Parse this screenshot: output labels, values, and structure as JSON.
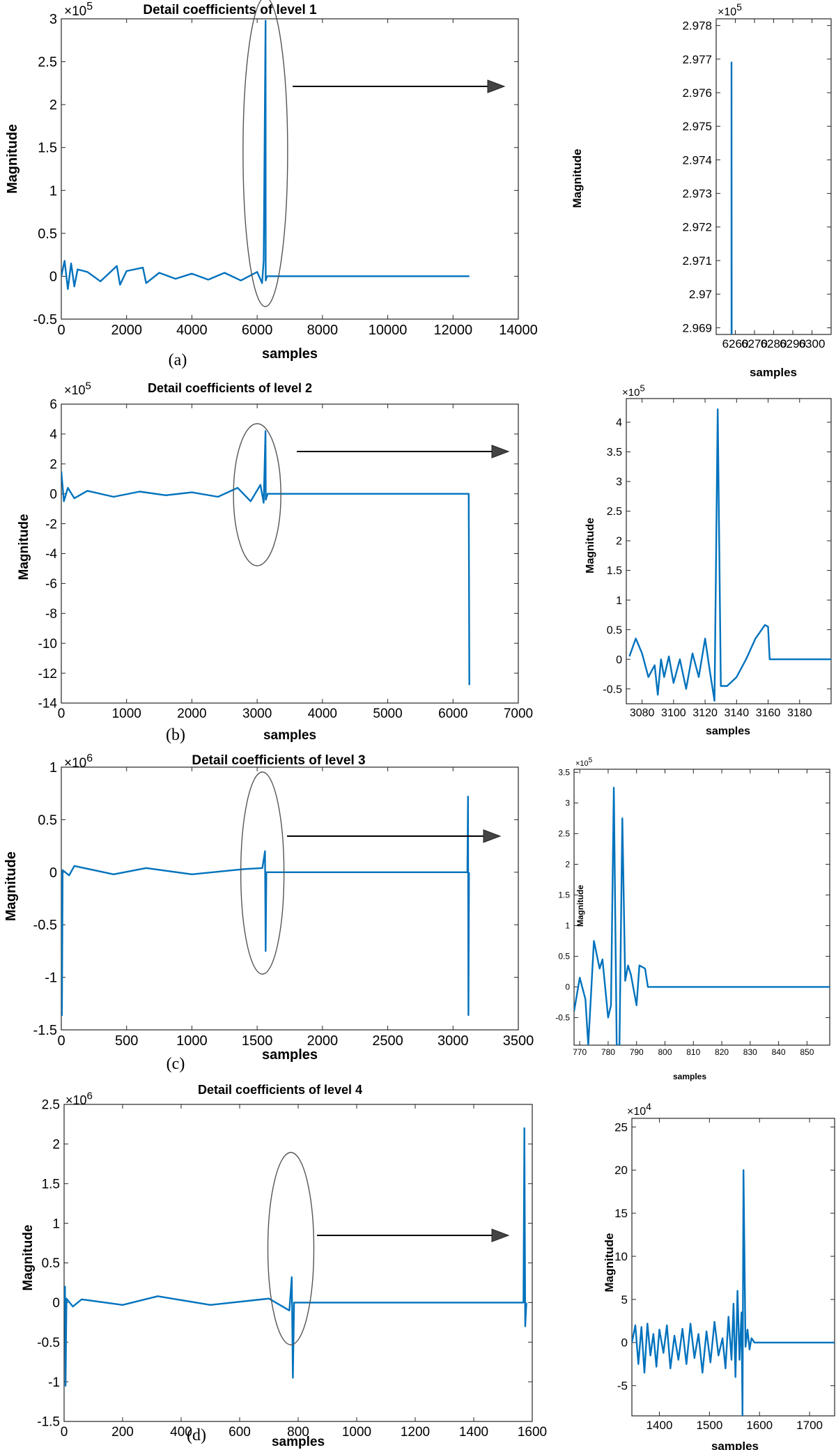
{
  "chart_data": [
    {
      "panel": "(a) main",
      "type": "line",
      "title": "Detail coefficients of level 1",
      "xlabel": "samples",
      "ylabel": "Magnitude",
      "exponent": "×10",
      "exponent_power": "5",
      "xlim": [
        0,
        14000
      ],
      "ylim": [
        -0.5,
        3
      ],
      "xticks": [
        "0",
        "2000",
        "4000",
        "6000",
        "8000",
        "10000",
        "12000",
        "14000"
      ],
      "yticks": [
        "-0.5",
        "0",
        "0.5",
        "1",
        "1.5",
        "2",
        "2.5",
        "3"
      ],
      "series": [
        {
          "color": "#0072BD",
          "points": [
            [
              0,
              0
            ],
            [
              100,
              0.18
            ],
            [
              200,
              -0.15
            ],
            [
              300,
              0.15
            ],
            [
              400,
              -0.12
            ],
            [
              500,
              0.08
            ],
            [
              800,
              0.05
            ],
            [
              1200,
              -0.06
            ],
            [
              1700,
              0.12
            ],
            [
              1800,
              -0.1
            ],
            [
              2000,
              0.06
            ],
            [
              2500,
              0.1
            ],
            [
              2600,
              -0.08
            ],
            [
              3000,
              0.04
            ],
            [
              3500,
              -0.03
            ],
            [
              4000,
              0.03
            ],
            [
              4500,
              -0.04
            ],
            [
              5000,
              0.04
            ],
            [
              5500,
              -0.05
            ],
            [
              6000,
              0.05
            ],
            [
              6150,
              -0.08
            ],
            [
              6200,
              0.18
            ],
            [
              6258,
              2.977
            ],
            [
              6262,
              -0.05
            ],
            [
              6300,
              0
            ],
            [
              12500,
              0
            ]
          ]
        }
      ],
      "highlight_ellipse_x": 6250,
      "caption": "(a)"
    },
    {
      "panel": "(a) zoom",
      "type": "line",
      "xlabel": "samples",
      "ylabel": "Magnitude",
      "exponent": "×10",
      "exponent_power": "5",
      "xlim": [
        6250,
        6310
      ],
      "ylim": [
        2.9688,
        2.9782
      ],
      "xticks": [
        "6260",
        "6270",
        "6280",
        "6290",
        "6300"
      ],
      "yticks": [
        "2.969",
        "2.97",
        "2.971",
        "2.972",
        "2.973",
        "2.974",
        "2.975",
        "2.976",
        "2.977",
        "2.978"
      ],
      "series": [
        {
          "color": "#0072BD",
          "points": [
            [
              6258,
              2.9688
            ],
            [
              6258,
              2.9769
            ],
            [
              6258.1,
              2.9688
            ]
          ]
        }
      ]
    },
    {
      "panel": "(b) main",
      "type": "line",
      "title": "Detail coefficients of level 2",
      "xlabel": "samples",
      "ylabel": "Magnitude",
      "exponent": "×10",
      "exponent_power": "5",
      "xlim": [
        0,
        7000
      ],
      "ylim": [
        -14,
        6
      ],
      "xticks": [
        "0",
        "1000",
        "2000",
        "3000",
        "4000",
        "5000",
        "6000",
        "7000"
      ],
      "yticks": [
        "-14",
        "-12",
        "-10",
        "-8",
        "-6",
        "-4",
        "-2",
        "0",
        "2",
        "4",
        "6"
      ],
      "series": [
        {
          "color": "#0072BD",
          "points": [
            [
              0,
              1.5
            ],
            [
              40,
              -0.5
            ],
            [
              100,
              0.4
            ],
            [
              200,
              -0.3
            ],
            [
              400,
              0.2
            ],
            [
              800,
              -0.2
            ],
            [
              1200,
              0.15
            ],
            [
              1600,
              -0.1
            ],
            [
              2000,
              0.1
            ],
            [
              2400,
              -0.2
            ],
            [
              2700,
              0.4
            ],
            [
              2900,
              -0.5
            ],
            [
              3050,
              0.6
            ],
            [
              3100,
              -0.6
            ],
            [
              3128,
              4.2
            ],
            [
              3132,
              -0.4
            ],
            [
              3160,
              0
            ],
            [
              6240,
              0
            ],
            [
              6250,
              -12.8
            ]
          ]
        }
      ],
      "highlight_ellipse_x": 3000,
      "caption": "(b)"
    },
    {
      "panel": "(b) zoom",
      "type": "line",
      "xlabel": "samples",
      "ylabel": "Magnitude",
      "exponent": "×10",
      "exponent_power": "5",
      "xlim": [
        3070,
        3200
      ],
      "ylim": [
        -0.75,
        4.4
      ],
      "xticks": [
        "3080",
        "3100",
        "3120",
        "3140",
        "3160",
        "3180"
      ],
      "yticks": [
        "-0.5",
        "0",
        "0.5",
        "1",
        "1.5",
        "2",
        "2.5",
        "3",
        "3.5",
        "4"
      ],
      "series": [
        {
          "color": "#0072BD",
          "points": [
            [
              3072,
              0.05
            ],
            [
              3076,
              0.35
            ],
            [
              3080,
              0.1
            ],
            [
              3084,
              -0.3
            ],
            [
              3088,
              -0.1
            ],
            [
              3090,
              -0.6
            ],
            [
              3092,
              0.0
            ],
            [
              3094,
              -0.3
            ],
            [
              3097,
              0.05
            ],
            [
              3100,
              -0.4
            ],
            [
              3104,
              0.0
            ],
            [
              3108,
              -0.5
            ],
            [
              3112,
              0.1
            ],
            [
              3116,
              -0.3
            ],
            [
              3120,
              0.35
            ],
            [
              3123,
              -0.2
            ],
            [
              3126,
              -0.7
            ],
            [
              3128,
              4.22
            ],
            [
              3130,
              -0.45
            ],
            [
              3134,
              -0.45
            ],
            [
              3140,
              -0.3
            ],
            [
              3146,
              0.0
            ],
            [
              3152,
              0.35
            ],
            [
              3158,
              0.58
            ],
            [
              3160,
              0.55
            ],
            [
              3161,
              0.0
            ],
            [
              3200,
              0.0
            ]
          ]
        }
      ]
    },
    {
      "panel": "(c) main",
      "type": "line",
      "title": "Detail coefficients of level 3",
      "xlabel": "samples",
      "ylabel": "Magnitude",
      "exponent": "×10",
      "exponent_power": "6",
      "xlim": [
        0,
        3500
      ],
      "ylim": [
        -1.5,
        1
      ],
      "xticks": [
        "0",
        "500",
        "1000",
        "1500",
        "2000",
        "2500",
        "3000",
        "3500"
      ],
      "yticks": [
        "-1.5",
        "-1",
        "-0.5",
        "0",
        "0.5",
        "1"
      ],
      "series": [
        {
          "color": "#0072BD",
          "points": [
            [
              0,
              0
            ],
            [
              5,
              -1.36
            ],
            [
              10,
              0.02
            ],
            [
              60,
              -0.03
            ],
            [
              100,
              0.06
            ],
            [
              400,
              -0.02
            ],
            [
              650,
              0.04
            ],
            [
              1000,
              -0.02
            ],
            [
              1400,
              0.03
            ],
            [
              1540,
              0.04
            ],
            [
              1560,
              0.2
            ],
            [
              1565,
              -0.75
            ],
            [
              1570,
              0
            ],
            [
              3110,
              0
            ],
            [
              3115,
              0.72
            ],
            [
              3118,
              -1.36
            ],
            [
              3122,
              0
            ]
          ]
        }
      ],
      "highlight_ellipse_x": 1540,
      "caption": "(c)"
    },
    {
      "panel": "(c) zoom",
      "type": "line",
      "xlabel": "samples",
      "ylabel": "Magnitude",
      "exponent": "×10",
      "exponent_power": "5",
      "xlim": [
        768,
        858
      ],
      "ylim": [
        -0.95,
        3.55
      ],
      "xticks": [
        "770",
        "780",
        "790",
        "800",
        "810",
        "820",
        "830",
        "840",
        "850"
      ],
      "yticks": [
        "-0.5",
        "0",
        "0.5",
        "1",
        "1.5",
        "2",
        "2.5",
        "3",
        "3.5"
      ],
      "series": [
        {
          "color": "#0072BD",
          "points": [
            [
              768,
              -0.4
            ],
            [
              770,
              0.15
            ],
            [
              772,
              -0.2
            ],
            [
              773,
              -0.95
            ],
            [
              775,
              0.75
            ],
            [
              777,
              0.3
            ],
            [
              778,
              0.45
            ],
            [
              780,
              -0.5
            ],
            [
              781,
              -0.3
            ],
            [
              782,
              3.25
            ],
            [
              783,
              -0.95
            ],
            [
              784,
              -0.95
            ],
            [
              785,
              2.75
            ],
            [
              786,
              0.1
            ],
            [
              787,
              0.35
            ],
            [
              788,
              0.2
            ],
            [
              790,
              -0.3
            ],
            [
              791,
              0.35
            ],
            [
              793,
              0.3
            ],
            [
              794,
              0.0
            ],
            [
              858,
              0.0
            ]
          ]
        }
      ]
    },
    {
      "panel": "(d) main",
      "type": "line",
      "title": "Detail coefficients of level 4",
      "xlabel": "samples",
      "ylabel": "Magnitude",
      "exponent": "×10",
      "exponent_power": "6",
      "xlim": [
        0,
        1600
      ],
      "ylim": [
        -1.5,
        2.5
      ],
      "xticks": [
        "0",
        "200",
        "400",
        "600",
        "800",
        "1000",
        "1200",
        "1400",
        "1600"
      ],
      "yticks": [
        "-1.5",
        "-1",
        "-0.5",
        "0",
        "0.5",
        "1",
        "1.5",
        "2",
        "2.5"
      ],
      "series": [
        {
          "color": "#0072BD",
          "points": [
            [
              0,
              0
            ],
            [
              3,
              0.2
            ],
            [
              5,
              -1.05
            ],
            [
              8,
              0.05
            ],
            [
              30,
              -0.05
            ],
            [
              60,
              0.04
            ],
            [
              200,
              -0.03
            ],
            [
              320,
              0.08
            ],
            [
              500,
              -0.03
            ],
            [
              700,
              0.05
            ],
            [
              770,
              -0.1
            ],
            [
              778,
              0.32
            ],
            [
              782,
              -0.95
            ],
            [
              786,
              0
            ],
            [
              1570,
              0
            ],
            [
              1573,
              2.2
            ],
            [
              1576,
              -0.3
            ],
            [
              1580,
              0
            ]
          ]
        }
      ],
      "highlight_ellipse_x": 775,
      "caption": "(d)"
    },
    {
      "panel": "(d) zoom",
      "type": "line",
      "xlabel": "samples",
      "ylabel": "Magnitude",
      "exponent": "×10",
      "exponent_power": "4",
      "xlim": [
        1345,
        1750
      ],
      "ylim": [
        -8.5,
        26
      ],
      "xticks": [
        "1400",
        "1500",
        "1600",
        "1700"
      ],
      "yticks": [
        "-5",
        "0",
        "5",
        "10",
        "15",
        "20",
        "25"
      ],
      "series": [
        {
          "color": "#0072BD",
          "points": [
            [
              1345,
              0
            ],
            [
              1352,
              2
            ],
            [
              1358,
              -2.5
            ],
            [
              1364,
              1.8
            ],
            [
              1370,
              -3.5
            ],
            [
              1376,
              2.2
            ],
            [
              1382,
              -1.5
            ],
            [
              1388,
              1
            ],
            [
              1394,
              -2.8
            ],
            [
              1400,
              1.5
            ],
            [
              1408,
              -1.2
            ],
            [
              1415,
              2
            ],
            [
              1422,
              -3
            ],
            [
              1430,
              0.8
            ],
            [
              1438,
              -2
            ],
            [
              1446,
              1.6
            ],
            [
              1454,
              -2.5
            ],
            [
              1462,
              2.2
            ],
            [
              1470,
              -1.8
            ],
            [
              1478,
              1
            ],
            [
              1486,
              -3.5
            ],
            [
              1494,
              1.3
            ],
            [
              1502,
              -2.3
            ],
            [
              1510,
              2.4
            ],
            [
              1518,
              -1.5
            ],
            [
              1526,
              0.5
            ],
            [
              1532,
              -3
            ],
            [
              1538,
              3
            ],
            [
              1544,
              -2
            ],
            [
              1548,
              4.5
            ],
            [
              1552,
              -4
            ],
            [
              1556,
              6
            ],
            [
              1560,
              -2
            ],
            [
              1564,
              3.5
            ],
            [
              1566,
              -8.5
            ],
            [
              1568,
              20
            ],
            [
              1572,
              -0.5
            ],
            [
              1576,
              1.5
            ],
            [
              1580,
              -0.8
            ],
            [
              1584,
              0.5
            ],
            [
              1590,
              0
            ],
            [
              1750,
              0
            ]
          ]
        }
      ]
    }
  ]
}
